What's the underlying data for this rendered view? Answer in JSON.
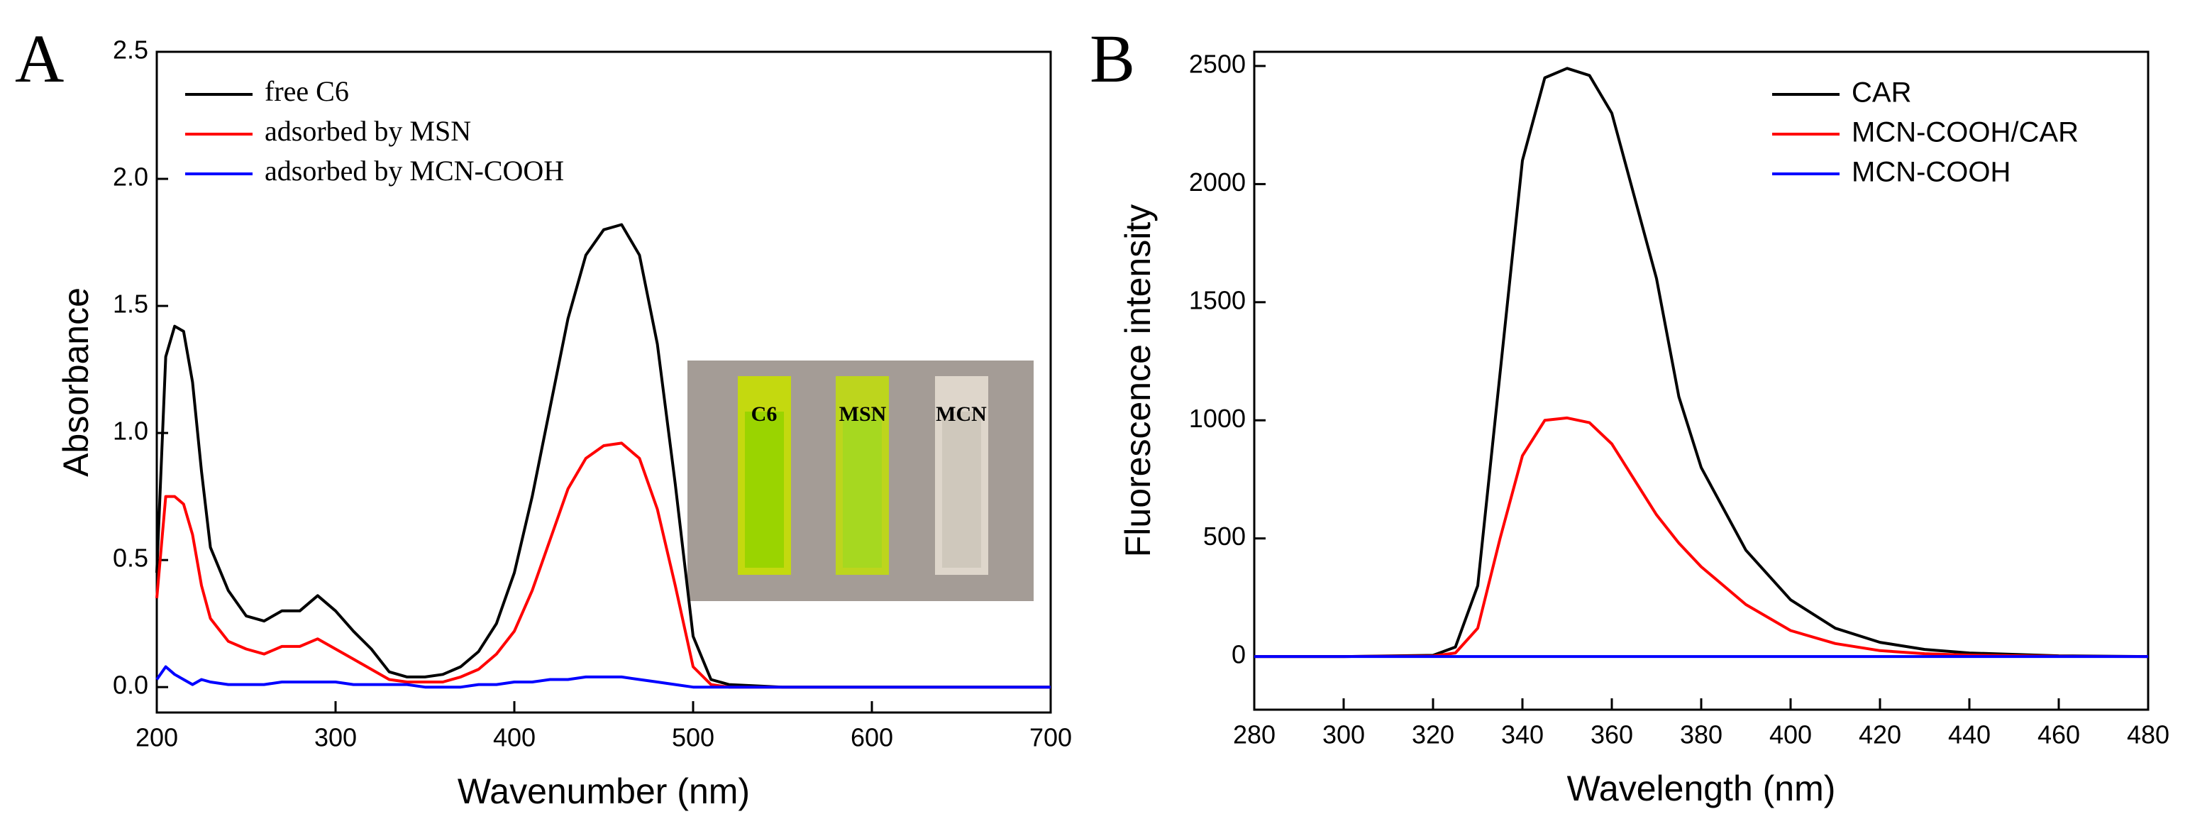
{
  "chart_data": [
    {
      "type": "line",
      "panel": "A",
      "x_label": "Wavenumber (nm)",
      "y_label": "Absorbance",
      "x": [
        200,
        205,
        210,
        215,
        220,
        225,
        230,
        240,
        250,
        260,
        270,
        280,
        290,
        300,
        310,
        320,
        330,
        340,
        350,
        360,
        370,
        380,
        390,
        400,
        410,
        420,
        430,
        440,
        450,
        460,
        470,
        480,
        490,
        500,
        510,
        520,
        550,
        600,
        650,
        700
      ],
      "series": [
        {
          "name": "free C6",
          "color": "#000000",
          "values": [
            0.45,
            1.3,
            1.42,
            1.4,
            1.2,
            0.85,
            0.55,
            0.38,
            0.28,
            0.26,
            0.3,
            0.3,
            0.36,
            0.3,
            0.22,
            0.15,
            0.06,
            0.04,
            0.04,
            0.05,
            0.08,
            0.14,
            0.25,
            0.45,
            0.75,
            1.1,
            1.45,
            1.7,
            1.8,
            1.82,
            1.7,
            1.35,
            0.8,
            0.2,
            0.03,
            0.01,
            0,
            0,
            0,
            0
          ]
        },
        {
          "name": "adsorbed by MSN",
          "color": "#ff0000",
          "values": [
            0.35,
            0.75,
            0.75,
            0.72,
            0.6,
            0.4,
            0.27,
            0.18,
            0.15,
            0.13,
            0.16,
            0.16,
            0.19,
            0.15,
            0.11,
            0.07,
            0.03,
            0.02,
            0.02,
            0.02,
            0.04,
            0.07,
            0.13,
            0.22,
            0.38,
            0.58,
            0.78,
            0.9,
            0.95,
            0.96,
            0.9,
            0.7,
            0.4,
            0.08,
            0.01,
            0,
            0,
            0,
            0,
            0
          ]
        },
        {
          "name": "adsorbed by MCN-COOH",
          "color": "#0000ff",
          "values": [
            0.03,
            0.08,
            0.05,
            0.03,
            0.01,
            0.03,
            0.02,
            0.01,
            0.01,
            0.01,
            0.02,
            0.02,
            0.02,
            0.02,
            0.01,
            0.01,
            0.01,
            0.01,
            0,
            0,
            0,
            0.01,
            0.01,
            0.02,
            0.02,
            0.03,
            0.03,
            0.04,
            0.04,
            0.04,
            0.03,
            0.02,
            0.01,
            0,
            0,
            0,
            0,
            0,
            0,
            0
          ]
        }
      ],
      "xlim": [
        200,
        700
      ],
      "xticks": [
        200,
        300,
        400,
        500,
        600,
        700
      ],
      "ylim": [
        -0.1,
        2.5
      ],
      "yticks": [
        {
          "value": 0,
          "label": "0.0"
        },
        0.5,
        {
          "value": 1,
          "label": "1.0"
        },
        1.5,
        {
          "value": 2,
          "label": "2.0"
        },
        2.5
      ],
      "legend": "top-left",
      "inset_labels": [
        "C6",
        "MSN",
        "MCN"
      ]
    },
    {
      "type": "line",
      "panel": "B",
      "x_label": "Wavelength (nm)",
      "y_label": "Fluorescence intensity",
      "x": [
        280,
        300,
        320,
        325,
        330,
        335,
        340,
        345,
        350,
        355,
        360,
        365,
        370,
        375,
        380,
        390,
        400,
        410,
        420,
        430,
        440,
        460,
        480
      ],
      "series": [
        {
          "name": "CAR",
          "color": "#000000",
          "values": [
            0,
            0,
            5,
            40,
            300,
            1200,
            2100,
            2450,
            2490,
            2460,
            2300,
            1950,
            1600,
            1100,
            800,
            450,
            240,
            120,
            60,
            30,
            15,
            3,
            0
          ]
        },
        {
          "name": "MCN-COOH/CAR",
          "color": "#ff0000",
          "values": [
            0,
            0,
            2,
            15,
            120,
            500,
            850,
            1000,
            1010,
            990,
            900,
            750,
            600,
            480,
            380,
            220,
            110,
            55,
            25,
            12,
            6,
            1,
            0
          ]
        },
        {
          "name": "MCN-COOH",
          "color": "#0000ff",
          "values": [
            0,
            0,
            0,
            0,
            0,
            0,
            0,
            0,
            0,
            0,
            0,
            0,
            0,
            0,
            0,
            0,
            0,
            0,
            0,
            0,
            0,
            0,
            0
          ]
        }
      ],
      "xlim": [
        280,
        480
      ],
      "xticks": [
        280,
        300,
        320,
        340,
        360,
        380,
        400,
        420,
        440,
        460,
        480
      ],
      "ylim": [
        -225,
        2560
      ],
      "yticks": [
        0,
        500,
        1000,
        1500,
        2000,
        2500
      ],
      "legend": "top-right"
    }
  ]
}
